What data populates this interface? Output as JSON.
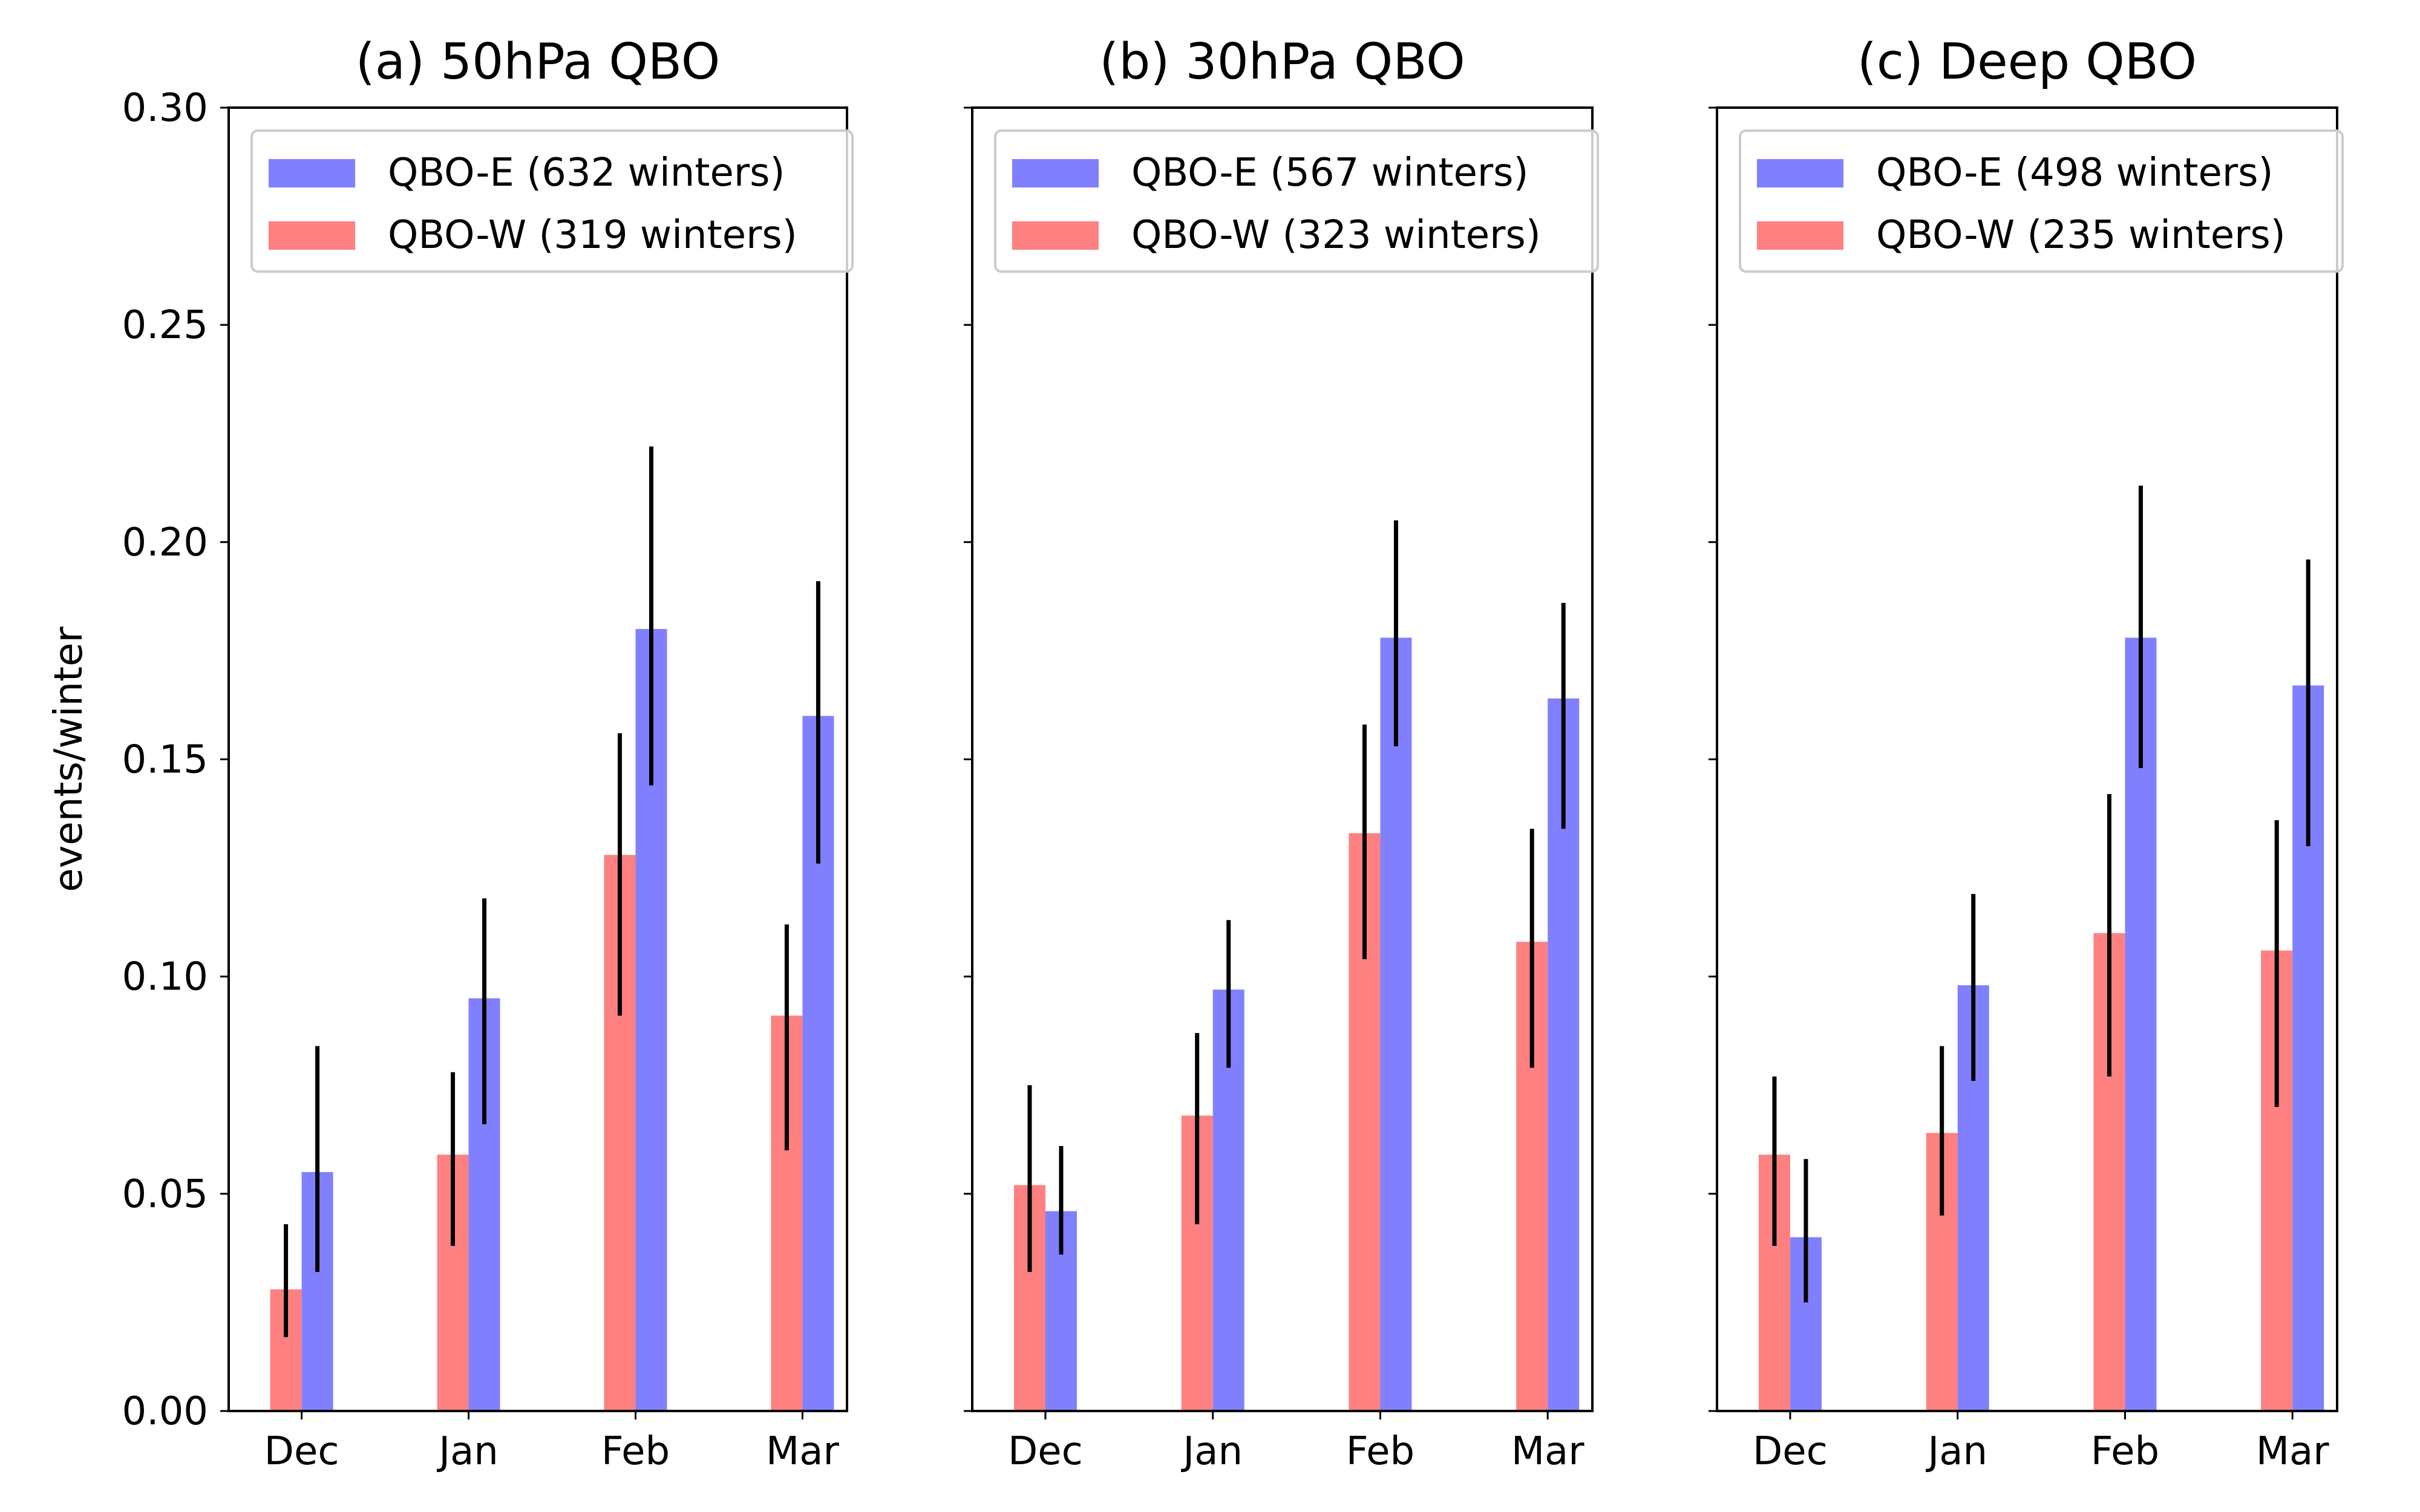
{
  "chart_data": [
    {
      "type": "bar",
      "title": "(a) 50hPa QBO",
      "categories": [
        "Dec",
        "Jan",
        "Feb",
        "Mar"
      ],
      "ylabel": "events/winter",
      "ylim": [
        0,
        0.3
      ],
      "yticks": [
        "0.00",
        "0.05",
        "0.10",
        "0.15",
        "0.20",
        "0.25",
        "0.30"
      ],
      "legend_position": "upper-right",
      "series": [
        {
          "name": "QBO-W (319 winters)",
          "color": "#ff8080",
          "values": [
            0.028,
            0.059,
            0.128,
            0.091
          ],
          "err_low": [
            0.017,
            0.038,
            0.091,
            0.06
          ],
          "err_high": [
            0.043,
            0.078,
            0.156,
            0.112
          ]
        },
        {
          "name": "QBO-E (632 winters)",
          "color": "#8080ff",
          "values": [
            0.055,
            0.095,
            0.18,
            0.16
          ],
          "err_low": [
            0.032,
            0.066,
            0.144,
            0.126
          ],
          "err_high": [
            0.084,
            0.118,
            0.222,
            0.191
          ]
        }
      ]
    },
    {
      "type": "bar",
      "title": "(b) 30hPa QBO",
      "categories": [
        "Dec",
        "Jan",
        "Feb",
        "Mar"
      ],
      "ylim": [
        0,
        0.3
      ],
      "legend_position": "upper-right",
      "series": [
        {
          "name": "QBO-W (323 winters)",
          "color": "#ff8080",
          "values": [
            0.052,
            0.068,
            0.133,
            0.108
          ],
          "err_low": [
            0.032,
            0.043,
            0.104,
            0.079
          ],
          "err_high": [
            0.075,
            0.087,
            0.158,
            0.134
          ]
        },
        {
          "name": "QBO-E (567 winters)",
          "color": "#8080ff",
          "values": [
            0.046,
            0.097,
            0.178,
            0.164
          ],
          "err_low": [
            0.036,
            0.079,
            0.153,
            0.134
          ],
          "err_high": [
            0.061,
            0.113,
            0.205,
            0.186
          ]
        }
      ]
    },
    {
      "type": "bar",
      "title": "(c) Deep QBO",
      "categories": [
        "Dec",
        "Jan",
        "Feb",
        "Mar"
      ],
      "ylim": [
        0,
        0.3
      ],
      "legend_position": "upper-right",
      "series": [
        {
          "name": "QBO-W (235 winters)",
          "color": "#ff8080",
          "values": [
            0.059,
            0.064,
            0.11,
            0.106
          ],
          "err_low": [
            0.038,
            0.045,
            0.077,
            0.07
          ],
          "err_high": [
            0.077,
            0.084,
            0.142,
            0.136
          ]
        },
        {
          "name": "QBO-E (498 winters)",
          "color": "#8080ff",
          "values": [
            0.04,
            0.098,
            0.178,
            0.167
          ],
          "err_low": [
            0.025,
            0.076,
            0.148,
            0.13
          ],
          "err_high": [
            0.058,
            0.119,
            0.213,
            0.196
          ]
        }
      ]
    }
  ]
}
